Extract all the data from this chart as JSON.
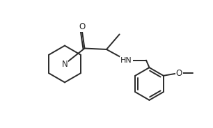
{
  "bg_color": "#ffffff",
  "line_color": "#2a2a2a",
  "line_width": 1.4,
  "figsize": [
    3.06,
    1.84
  ],
  "dpi": 100,
  "xlim": [
    0,
    10.2
  ],
  "ylim": [
    0,
    6.1
  ]
}
